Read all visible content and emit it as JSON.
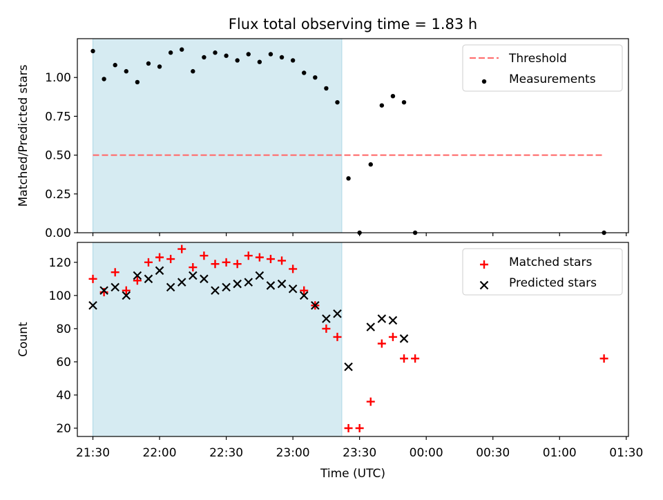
{
  "title": "Flux total observing time = 1.83 h",
  "chart_data": [
    {
      "type": "scatter",
      "ylabel": "Matched/Predicted stars",
      "xlabel": "",
      "xlim": [
        "21:23",
        "01:31"
      ],
      "ylim": [
        0.0,
        1.25
      ],
      "yticks": [
        "0.00",
        "0.25",
        "0.50",
        "0.75",
        "1.00"
      ],
      "highlight_span": [
        "21:30",
        "23:22"
      ],
      "threshold": {
        "name": "Threshold",
        "y": 0.5,
        "x_range": [
          "21:30",
          "01:20"
        ]
      },
      "legend": {
        "position": "upper right",
        "entries": [
          "Threshold",
          "Measurements"
        ]
      },
      "series": [
        {
          "name": "Measurements",
          "x": [
            "21:30",
            "21:35",
            "21:40",
            "21:45",
            "21:50",
            "21:55",
            "22:00",
            "22:05",
            "22:10",
            "22:15",
            "22:20",
            "22:25",
            "22:30",
            "22:35",
            "22:40",
            "22:45",
            "22:50",
            "22:55",
            "23:00",
            "23:05",
            "23:10",
            "23:15",
            "23:20",
            "23:25",
            "23:30",
            "23:35",
            "23:40",
            "23:45",
            "23:50",
            "23:55",
            "01:20"
          ],
          "y": [
            1.17,
            0.99,
            1.08,
            1.04,
            0.97,
            1.09,
            1.07,
            1.16,
            1.18,
            1.04,
            1.13,
            1.16,
            1.14,
            1.11,
            1.15,
            1.1,
            1.15,
            1.13,
            1.11,
            1.03,
            1.0,
            0.93,
            0.84,
            0.35,
            0.0,
            0.44,
            0.82,
            0.88,
            0.84,
            0.0,
            0.0
          ]
        }
      ]
    },
    {
      "type": "scatter",
      "ylabel": "Count",
      "xlabel": "Time (UTC)",
      "xlim": [
        "21:23",
        "01:31"
      ],
      "ylim": [
        15,
        132
      ],
      "yticks": [
        "20",
        "40",
        "60",
        "80",
        "100",
        "120"
      ],
      "xticks": [
        "21:30",
        "22:00",
        "22:30",
        "23:00",
        "23:30",
        "00:00",
        "00:30",
        "01:00",
        "01:30"
      ],
      "highlight_span": [
        "21:30",
        "23:22"
      ],
      "legend": {
        "position": "upper right",
        "entries": [
          "Matched stars",
          "Predicted stars"
        ]
      },
      "series": [
        {
          "name": "Matched stars",
          "marker": "plus",
          "color": "#ff0000",
          "x": [
            "21:30",
            "21:35",
            "21:40",
            "21:45",
            "21:50",
            "21:55",
            "22:00",
            "22:05",
            "22:10",
            "22:15",
            "22:20",
            "22:25",
            "22:30",
            "22:35",
            "22:40",
            "22:45",
            "22:50",
            "22:55",
            "23:00",
            "23:05",
            "23:10",
            "23:15",
            "23:20",
            "23:25",
            "23:30",
            "23:35",
            "23:40",
            "23:45",
            "23:50",
            "23:55",
            "01:20"
          ],
          "y": [
            110,
            102,
            114,
            103,
            109,
            120,
            123,
            122,
            128,
            117,
            124,
            119,
            120,
            119,
            124,
            123,
            122,
            121,
            116,
            103,
            94,
            80,
            75,
            20,
            20,
            36,
            71,
            75,
            62,
            62,
            62
          ]
        },
        {
          "name": "Predicted stars",
          "marker": "x",
          "color": "#000000",
          "x": [
            "21:30",
            "21:35",
            "21:40",
            "21:45",
            "21:50",
            "21:55",
            "22:00",
            "22:05",
            "22:10",
            "22:15",
            "22:20",
            "22:25",
            "22:30",
            "22:35",
            "22:40",
            "22:45",
            "22:50",
            "22:55",
            "23:00",
            "23:05",
            "23:10",
            "23:15",
            "23:20",
            "23:25",
            "23:35",
            "23:40",
            "23:45",
            "23:50"
          ],
          "y": [
            94,
            103,
            105,
            100,
            112,
            110,
            115,
            105,
            108,
            112,
            110,
            103,
            105,
            107,
            108,
            112,
            106,
            107,
            104,
            100,
            94,
            86,
            89,
            57,
            81,
            86,
            85,
            74
          ]
        }
      ]
    }
  ]
}
